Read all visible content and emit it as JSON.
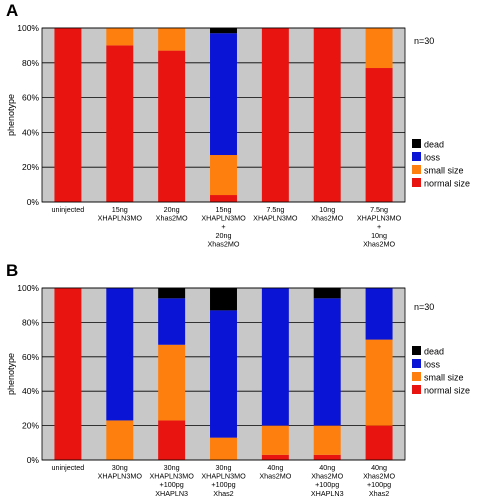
{
  "chart_data": [
    {
      "panel_label": "A",
      "type": "bar",
      "stacked": true,
      "ylabel": "phenotype",
      "ylim": [
        0,
        100
      ],
      "y_ticks": [
        "0%",
        "20%",
        "40%",
        "60%",
        "80%",
        "100%"
      ],
      "n_label": "n=30",
      "categories": [
        [
          "uninjected"
        ],
        [
          "15ng",
          "XHAPLN3MO"
        ],
        [
          "20ng",
          "Xhas2MO"
        ],
        [
          "15ng",
          "XHAPLN3MO",
          "+",
          "20ng",
          "Xhas2MO"
        ],
        [
          "7.5ng",
          "XHAPLN3MO"
        ],
        [
          "10ng",
          "Xhas2MO"
        ],
        [
          "7.5ng",
          "XHAPLN3MO",
          "+",
          "10ng",
          "Xhas2MO"
        ]
      ],
      "legend": [
        "dead",
        "loss",
        "small size",
        "normal size"
      ],
      "series": [
        {
          "name": "normal size",
          "color": "#e8140f",
          "values": [
            100,
            90,
            87,
            4,
            100,
            100,
            77
          ]
        },
        {
          "name": "small size",
          "color": "#ff7f0e",
          "values": [
            0,
            10,
            13,
            23,
            0,
            0,
            23
          ]
        },
        {
          "name": "loss",
          "color": "#0a14d4",
          "values": [
            0,
            0,
            0,
            70,
            0,
            0,
            0
          ]
        },
        {
          "name": "dead",
          "color": "#000000",
          "values": [
            0,
            0,
            0,
            3,
            0,
            0,
            0
          ]
        }
      ]
    },
    {
      "panel_label": "B",
      "type": "bar",
      "stacked": true,
      "ylabel": "phenotype",
      "ylim": [
        0,
        100
      ],
      "y_ticks": [
        "0%",
        "20%",
        "40%",
        "60%",
        "80%",
        "100%"
      ],
      "n_label": "n=30",
      "categories": [
        [
          "uninjected"
        ],
        [
          "30ng",
          "XHAPLN3MO"
        ],
        [
          "30ng",
          "XHAPLN3MO",
          "+100pg",
          "XHAPLN3"
        ],
        [
          "30ng",
          "XHAPLN3MO",
          "+100pg",
          "Xhas2"
        ],
        [
          "40ng",
          "Xhas2MO"
        ],
        [
          "40ng",
          "Xhas2MO",
          "+100pg",
          "XHAPLN3"
        ],
        [
          "40ng",
          "Xhas2MO",
          "+100pg",
          "Xhas2"
        ]
      ],
      "legend": [
        "dead",
        "loss",
        "small size",
        "normal size"
      ],
      "series": [
        {
          "name": "normal size",
          "color": "#e8140f",
          "values": [
            100,
            0,
            23,
            0,
            3,
            3,
            20
          ]
        },
        {
          "name": "small size",
          "color": "#ff7f0e",
          "values": [
            0,
            23,
            44,
            13,
            17,
            17,
            50
          ]
        },
        {
          "name": "loss",
          "color": "#0a14d4",
          "values": [
            0,
            77,
            27,
            74,
            80,
            74,
            30
          ]
        },
        {
          "name": "dead",
          "color": "#000000",
          "values": [
            0,
            0,
            6,
            13,
            0,
            6,
            0
          ]
        }
      ]
    }
  ],
  "style": {
    "plot_background": "#c8c8c8",
    "gridline_color": "#000000"
  }
}
